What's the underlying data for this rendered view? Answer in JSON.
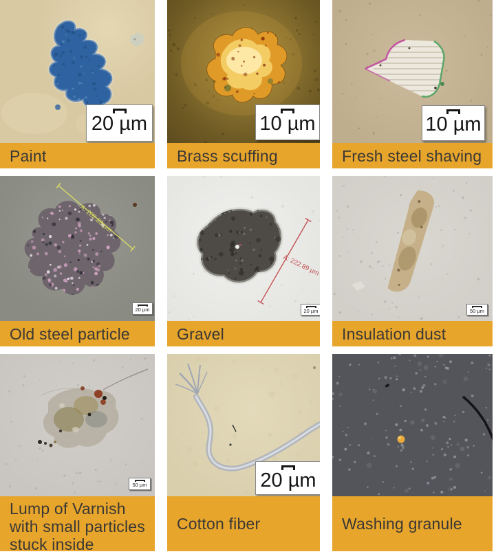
{
  "figure": {
    "description_visible_text_only": true,
    "colors": {
      "caption_bg": "#E7A52C",
      "caption_text": "#3A3834",
      "scalebox_bg": "#FFFFFF",
      "scalebox_text": "#151515",
      "measurement_yellow": "#D9DB64",
      "measurement_red": "#C25252"
    },
    "icons": {
      "scale_bracket_icon": "measurement-bracket (⊓ shape above scale value)"
    },
    "cells": [
      {
        "id": "paint",
        "label": "Paint",
        "scale_label": "20 µm",
        "scale_style": "large"
      },
      {
        "id": "brass-scuffing",
        "label": "Brass scuffing",
        "scale_label": "10 µm",
        "scale_style": "large"
      },
      {
        "id": "fresh-steel",
        "label": "Fresh steel shaving",
        "scale_label": "10 µm",
        "scale_style": "large"
      },
      {
        "id": "old-steel",
        "label": "Old steel particle",
        "scale_label": "20 µm",
        "scale_style": "small",
        "measurement": "A: 202.89 µm",
        "measurement_color": "#D9DB64"
      },
      {
        "id": "gravel",
        "label": "Gravel",
        "scale_label": "20 µm",
        "scale_style": "small",
        "measurement": "A: 222.89 µm",
        "measurement_color": "#C25252"
      },
      {
        "id": "insulation-dust",
        "label": "Insulation dust",
        "scale_label": "50 µm",
        "scale_style": "small"
      },
      {
        "id": "varnish-lump",
        "label": "Lump of Varnish\nwith small particles\nstuck inside",
        "scale_label": "50 µm",
        "scale_style": "small"
      },
      {
        "id": "cotton-fiber",
        "label": "Cotton fiber",
        "scale_label": "20 µm",
        "scale_style": "large"
      },
      {
        "id": "washing-granule",
        "label": "Washing granule"
      }
    ]
  }
}
